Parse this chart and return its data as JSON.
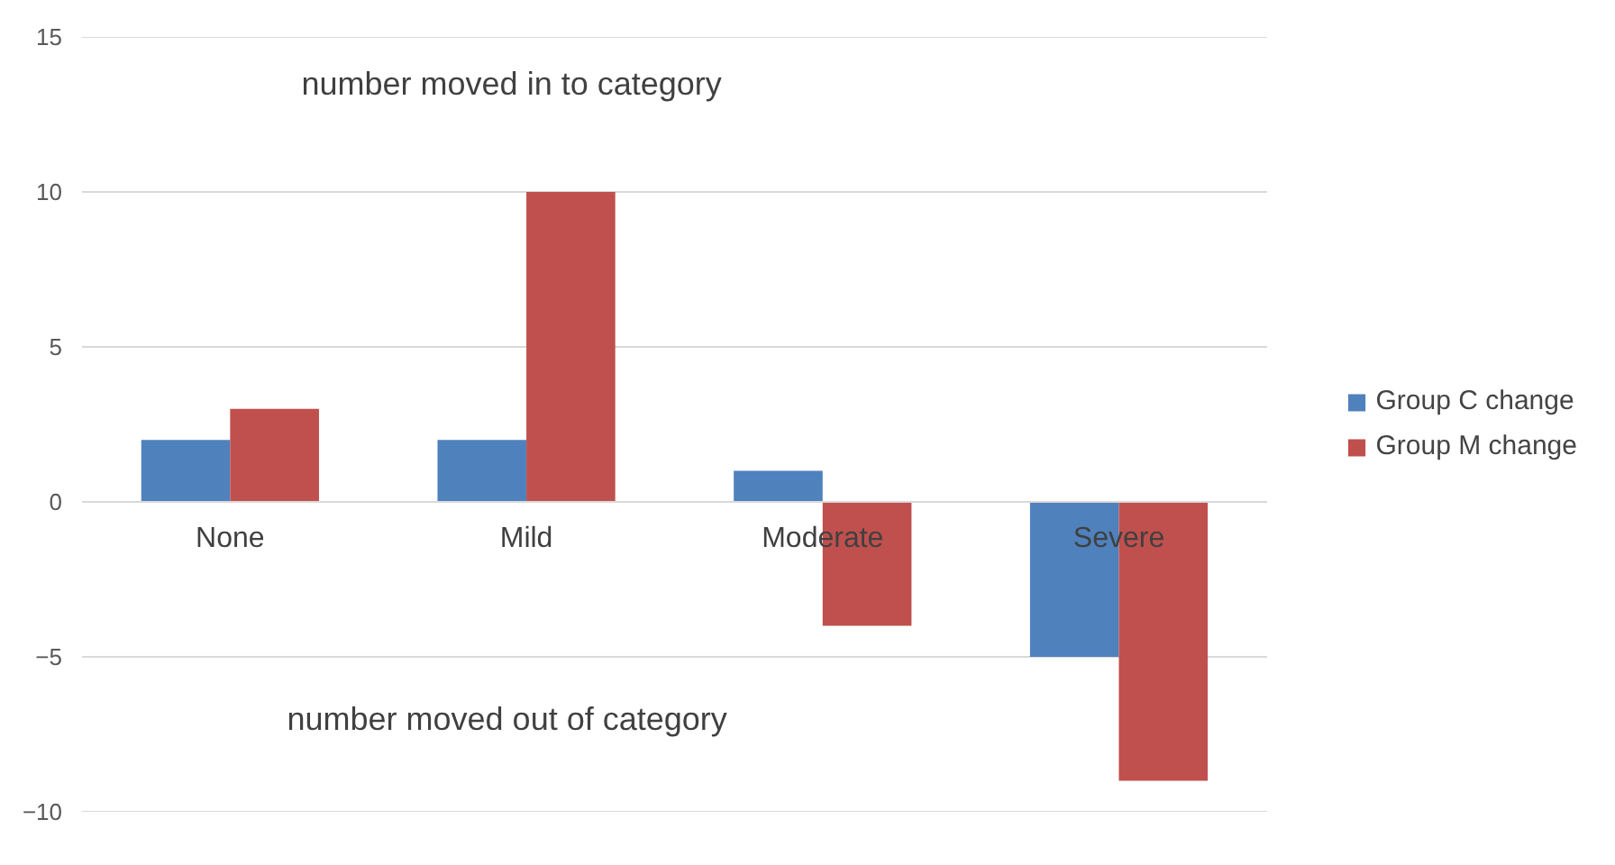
{
  "chart_data": {
    "type": "bar",
    "categories": [
      "None",
      "Mild",
      "Moderate",
      "Severe"
    ],
    "series": [
      {
        "name": "Group C change",
        "color": "#4f81bd",
        "values": [
          2,
          2,
          1,
          -5
        ]
      },
      {
        "name": "Group M change",
        "color": "#c0504d",
        "values": [
          3,
          10,
          -4,
          -9
        ]
      }
    ],
    "ylim": [
      -10,
      15
    ],
    "yticks": [
      -10,
      -5,
      0,
      5,
      10,
      15
    ],
    "grid": "y",
    "legend": "right",
    "annotations": [
      "number moved in to category",
      "number moved  out of category"
    ]
  }
}
